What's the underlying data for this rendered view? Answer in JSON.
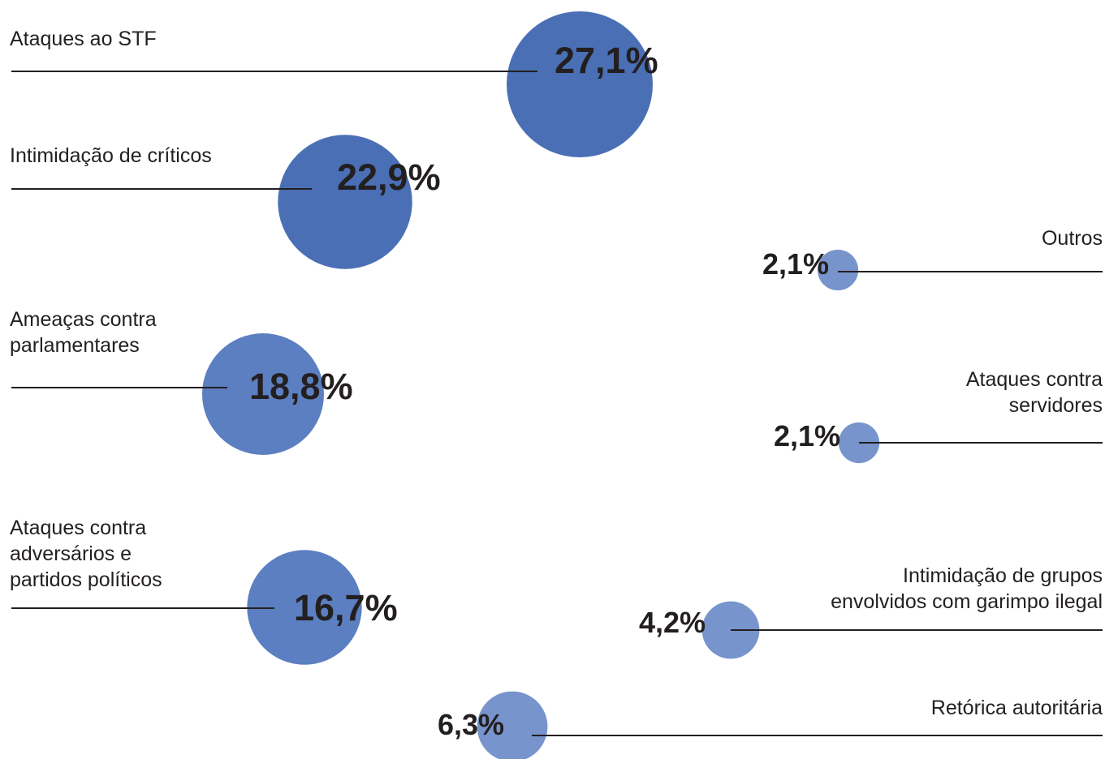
{
  "chart_data": {
    "type": "bubble",
    "unit": "%",
    "colors": {
      "large_bubble": "#4a6fb5",
      "mid_bubble": "#5b7fc0",
      "small_bubble": "#7894cc",
      "line": "#231f20",
      "value_text": "#231f20"
    },
    "items": [
      {
        "category": "Ataques ao STF",
        "value": 27.1,
        "value_label": "27,1%",
        "side": "left"
      },
      {
        "category": "Intimidação de críticos",
        "value": 22.9,
        "value_label": "22,9%",
        "side": "left"
      },
      {
        "category": "Ameaças contra\nparlamentares",
        "value": 18.8,
        "value_label": "18,8%",
        "side": "left"
      },
      {
        "category": "Ataques contra\nadversários e\npartidos políticos",
        "value": 16.7,
        "value_label": "16,7%",
        "side": "left"
      },
      {
        "category": "Outros",
        "value": 2.1,
        "value_label": "2,1%",
        "side": "right"
      },
      {
        "category": "Ataques contra\nservidores",
        "value": 2.1,
        "value_label": "2,1%",
        "side": "right"
      },
      {
        "category": "Intimidação de grupos\nenvolvidos com garimpo ilegal",
        "value": 4.2,
        "value_label": "4,2%",
        "side": "right"
      },
      {
        "category": "Retórica autoritária",
        "value": 6.3,
        "value_label": "6,3%",
        "side": "right"
      }
    ]
  }
}
